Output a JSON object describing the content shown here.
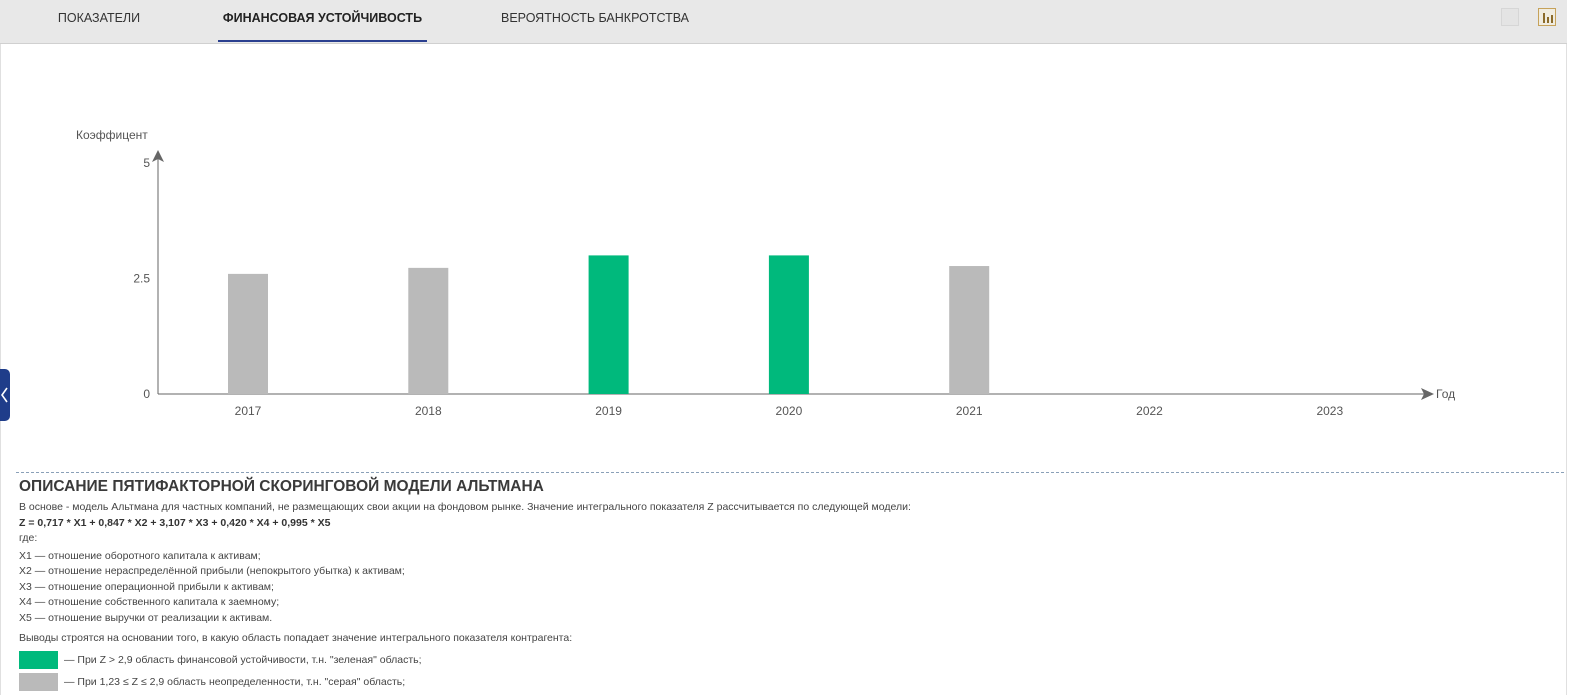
{
  "tabs": [
    {
      "label": "Показатели"
    },
    {
      "label": "Финансовая устойчивость"
    },
    {
      "label": "Вероятность банкротства"
    }
  ],
  "colors": {
    "green": "#00b97c",
    "gray": "#bababa",
    "tab_underline": "#2a3f8f",
    "side_toggle": "#1f3d8a"
  },
  "icons": {
    "table_view": "table-icon",
    "chart_view": "bar-chart-icon",
    "side_toggle": "chevron-left-icon"
  },
  "chart_data": {
    "type": "bar",
    "ylabel": "Коэффицент",
    "xlabel": "Год",
    "ylim": [
      0,
      5
    ],
    "yticks": [
      "0",
      "2.5",
      "5"
    ],
    "ytick_values": [
      0,
      2.5,
      5
    ],
    "categories": [
      "2017",
      "2018",
      "2019",
      "2020",
      "2021",
      "2022",
      "2023"
    ],
    "values": [
      2.6,
      2.73,
      3.0,
      3.0,
      2.77,
      null,
      null
    ],
    "bar_colors": [
      "gray",
      "gray",
      "green",
      "green",
      "gray",
      null,
      null
    ],
    "grid": false
  },
  "description": {
    "title": "Описание пятифакторной скоринговой модели Альтмана",
    "intro": "В основе - модель Альтмана для частных компаний, не размещающих свои акции на фондовом рынке. Значение интегрального показателя Z рассчитывается по следующей модели:",
    "formula": "Z = 0,717 * X1 + 0,847 * X2 + 3,107 * X3 + 0,420 * X4 + 0,995 * X5",
    "where": "где:",
    "factors": [
      "X1 — отношение оборотного капитала к активам;",
      "X2 — отношение нераспределённой прибыли (непокрытого убытка) к активам;",
      "X3 — отношение операционной прибыли к активам;",
      "X4 — отношение собственного капитала к заемному;",
      "X5 — отношение выручки от реализации к активам."
    ],
    "conclusion": "Выводы строятся на основании того, в какую область попадает значение интегрального показателя контрагента:",
    "legend": [
      {
        "color": "#00b97c",
        "text": "— При Z > 2,9 область финансовой устойчивости, т.н. \"зеленая\" область;"
      },
      {
        "color": "#bababa",
        "text": "— При 1,23 ≤ Z ≤ 2,9 область неопределенности, т.н. \"серая\" область;"
      }
    ]
  }
}
